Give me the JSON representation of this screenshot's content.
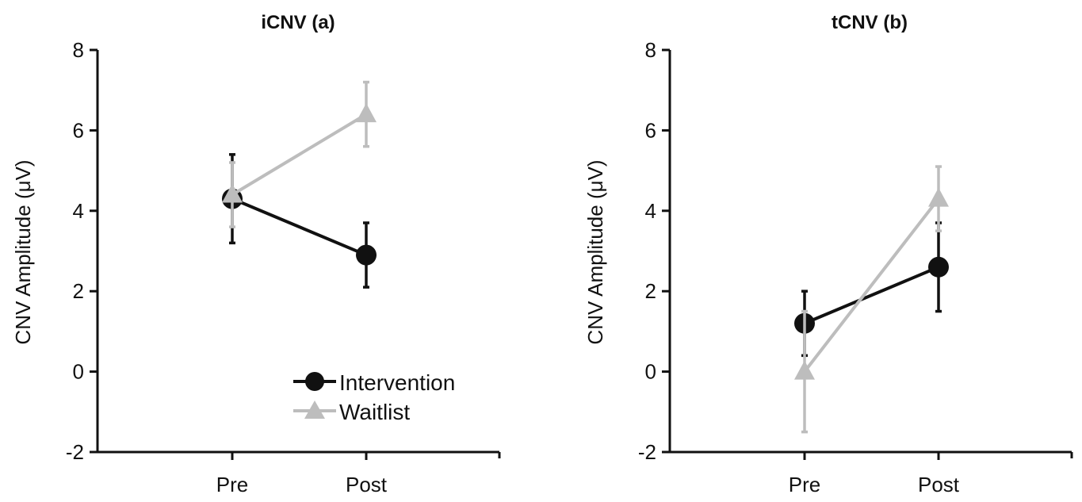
{
  "chart_data": [
    {
      "type": "line",
      "title": "iCNV (a)",
      "xlabel": "",
      "ylabel": "CNV Amplitude (μV)",
      "categories": [
        "Pre",
        "Post"
      ],
      "ylim": [
        -2,
        8
      ],
      "yticks": [
        "-2",
        "0",
        "2",
        "4",
        "6",
        "8"
      ],
      "legend": "inside lower-right",
      "grid": false,
      "series": [
        {
          "name": "Intervention",
          "color": "#111111",
          "marker": "circle",
          "values": [
            4.3,
            2.9
          ],
          "error": [
            1.1,
            0.8
          ]
        },
        {
          "name": "Waitlist",
          "color": "#bdbdbd",
          "marker": "triangle",
          "values": [
            4.4,
            6.4
          ],
          "error": [
            0.8,
            0.8
          ]
        }
      ]
    },
    {
      "type": "line",
      "title": "tCNV (b)",
      "xlabel": "",
      "ylabel": "CNV Amplitude (μV)",
      "categories": [
        "Pre",
        "Post"
      ],
      "ylim": [
        -2,
        8
      ],
      "yticks": [
        "-2",
        "0",
        "2",
        "4",
        "6",
        "8"
      ],
      "grid": false,
      "series": [
        {
          "name": "Intervention",
          "color": "#111111",
          "marker": "circle",
          "values": [
            1.2,
            2.6
          ],
          "error": [
            0.8,
            1.1
          ]
        },
        {
          "name": "Waitlist",
          "color": "#bdbdbd",
          "marker": "triangle",
          "values": [
            0.0,
            4.3
          ],
          "error": [
            1.5,
            0.8
          ]
        }
      ]
    }
  ]
}
